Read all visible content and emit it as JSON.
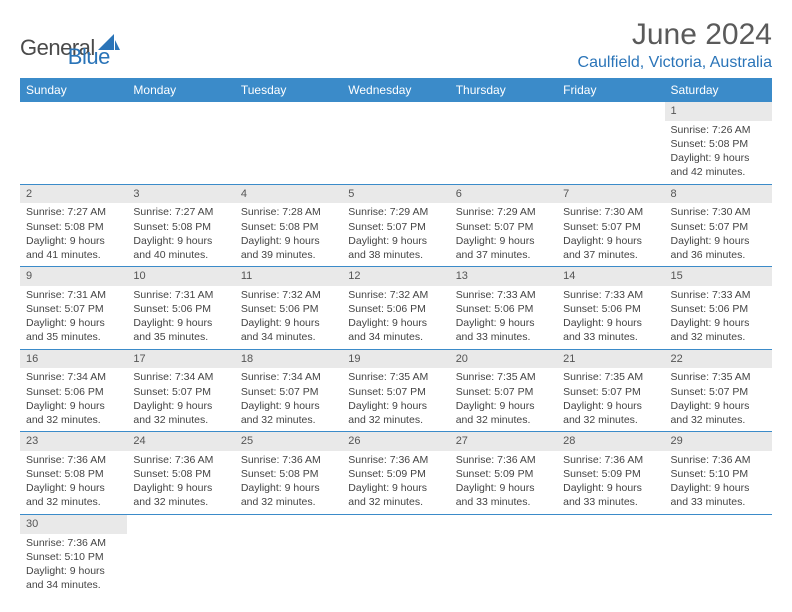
{
  "logo": {
    "general": "General",
    "blue": "Blue"
  },
  "title": "June 2024",
  "location": "Caulfield, Victoria, Australia",
  "colors": {
    "header_bg": "#3b8bc9",
    "header_fg": "#ffffff",
    "accent": "#2a74b8",
    "daynum_bg": "#e9e9e9",
    "text": "#444444",
    "border": "#3b8bc9"
  },
  "day_headers": [
    "Sunday",
    "Monday",
    "Tuesday",
    "Wednesday",
    "Thursday",
    "Friday",
    "Saturday"
  ],
  "weeks": [
    [
      null,
      null,
      null,
      null,
      null,
      null,
      {
        "n": "1",
        "sr": "Sunrise: 7:26 AM",
        "ss": "Sunset: 5:08 PM",
        "d1": "Daylight: 9 hours",
        "d2": "and 42 minutes."
      }
    ],
    [
      {
        "n": "2",
        "sr": "Sunrise: 7:27 AM",
        "ss": "Sunset: 5:08 PM",
        "d1": "Daylight: 9 hours",
        "d2": "and 41 minutes."
      },
      {
        "n": "3",
        "sr": "Sunrise: 7:27 AM",
        "ss": "Sunset: 5:08 PM",
        "d1": "Daylight: 9 hours",
        "d2": "and 40 minutes."
      },
      {
        "n": "4",
        "sr": "Sunrise: 7:28 AM",
        "ss": "Sunset: 5:08 PM",
        "d1": "Daylight: 9 hours",
        "d2": "and 39 minutes."
      },
      {
        "n": "5",
        "sr": "Sunrise: 7:29 AM",
        "ss": "Sunset: 5:07 PM",
        "d1": "Daylight: 9 hours",
        "d2": "and 38 minutes."
      },
      {
        "n": "6",
        "sr": "Sunrise: 7:29 AM",
        "ss": "Sunset: 5:07 PM",
        "d1": "Daylight: 9 hours",
        "d2": "and 37 minutes."
      },
      {
        "n": "7",
        "sr": "Sunrise: 7:30 AM",
        "ss": "Sunset: 5:07 PM",
        "d1": "Daylight: 9 hours",
        "d2": "and 37 minutes."
      },
      {
        "n": "8",
        "sr": "Sunrise: 7:30 AM",
        "ss": "Sunset: 5:07 PM",
        "d1": "Daylight: 9 hours",
        "d2": "and 36 minutes."
      }
    ],
    [
      {
        "n": "9",
        "sr": "Sunrise: 7:31 AM",
        "ss": "Sunset: 5:07 PM",
        "d1": "Daylight: 9 hours",
        "d2": "and 35 minutes."
      },
      {
        "n": "10",
        "sr": "Sunrise: 7:31 AM",
        "ss": "Sunset: 5:06 PM",
        "d1": "Daylight: 9 hours",
        "d2": "and 35 minutes."
      },
      {
        "n": "11",
        "sr": "Sunrise: 7:32 AM",
        "ss": "Sunset: 5:06 PM",
        "d1": "Daylight: 9 hours",
        "d2": "and 34 minutes."
      },
      {
        "n": "12",
        "sr": "Sunrise: 7:32 AM",
        "ss": "Sunset: 5:06 PM",
        "d1": "Daylight: 9 hours",
        "d2": "and 34 minutes."
      },
      {
        "n": "13",
        "sr": "Sunrise: 7:33 AM",
        "ss": "Sunset: 5:06 PM",
        "d1": "Daylight: 9 hours",
        "d2": "and 33 minutes."
      },
      {
        "n": "14",
        "sr": "Sunrise: 7:33 AM",
        "ss": "Sunset: 5:06 PM",
        "d1": "Daylight: 9 hours",
        "d2": "and 33 minutes."
      },
      {
        "n": "15",
        "sr": "Sunrise: 7:33 AM",
        "ss": "Sunset: 5:06 PM",
        "d1": "Daylight: 9 hours",
        "d2": "and 32 minutes."
      }
    ],
    [
      {
        "n": "16",
        "sr": "Sunrise: 7:34 AM",
        "ss": "Sunset: 5:06 PM",
        "d1": "Daylight: 9 hours",
        "d2": "and 32 minutes."
      },
      {
        "n": "17",
        "sr": "Sunrise: 7:34 AM",
        "ss": "Sunset: 5:07 PM",
        "d1": "Daylight: 9 hours",
        "d2": "and 32 minutes."
      },
      {
        "n": "18",
        "sr": "Sunrise: 7:34 AM",
        "ss": "Sunset: 5:07 PM",
        "d1": "Daylight: 9 hours",
        "d2": "and 32 minutes."
      },
      {
        "n": "19",
        "sr": "Sunrise: 7:35 AM",
        "ss": "Sunset: 5:07 PM",
        "d1": "Daylight: 9 hours",
        "d2": "and 32 minutes."
      },
      {
        "n": "20",
        "sr": "Sunrise: 7:35 AM",
        "ss": "Sunset: 5:07 PM",
        "d1": "Daylight: 9 hours",
        "d2": "and 32 minutes."
      },
      {
        "n": "21",
        "sr": "Sunrise: 7:35 AM",
        "ss": "Sunset: 5:07 PM",
        "d1": "Daylight: 9 hours",
        "d2": "and 32 minutes."
      },
      {
        "n": "22",
        "sr": "Sunrise: 7:35 AM",
        "ss": "Sunset: 5:07 PM",
        "d1": "Daylight: 9 hours",
        "d2": "and 32 minutes."
      }
    ],
    [
      {
        "n": "23",
        "sr": "Sunrise: 7:36 AM",
        "ss": "Sunset: 5:08 PM",
        "d1": "Daylight: 9 hours",
        "d2": "and 32 minutes."
      },
      {
        "n": "24",
        "sr": "Sunrise: 7:36 AM",
        "ss": "Sunset: 5:08 PM",
        "d1": "Daylight: 9 hours",
        "d2": "and 32 minutes."
      },
      {
        "n": "25",
        "sr": "Sunrise: 7:36 AM",
        "ss": "Sunset: 5:08 PM",
        "d1": "Daylight: 9 hours",
        "d2": "and 32 minutes."
      },
      {
        "n": "26",
        "sr": "Sunrise: 7:36 AM",
        "ss": "Sunset: 5:09 PM",
        "d1": "Daylight: 9 hours",
        "d2": "and 32 minutes."
      },
      {
        "n": "27",
        "sr": "Sunrise: 7:36 AM",
        "ss": "Sunset: 5:09 PM",
        "d1": "Daylight: 9 hours",
        "d2": "and 33 minutes."
      },
      {
        "n": "28",
        "sr": "Sunrise: 7:36 AM",
        "ss": "Sunset: 5:09 PM",
        "d1": "Daylight: 9 hours",
        "d2": "and 33 minutes."
      },
      {
        "n": "29",
        "sr": "Sunrise: 7:36 AM",
        "ss": "Sunset: 5:10 PM",
        "d1": "Daylight: 9 hours",
        "d2": "and 33 minutes."
      }
    ],
    [
      {
        "n": "30",
        "sr": "Sunrise: 7:36 AM",
        "ss": "Sunset: 5:10 PM",
        "d1": "Daylight: 9 hours",
        "d2": "and 34 minutes."
      },
      null,
      null,
      null,
      null,
      null,
      null
    ]
  ]
}
